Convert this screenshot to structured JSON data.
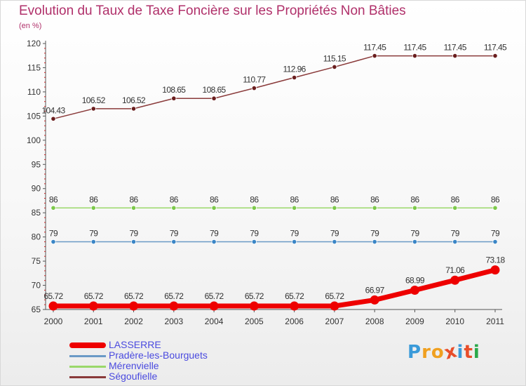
{
  "page": {
    "title": "Evolution du Taux de Taxe Foncière sur les Propriétés Non Bâties",
    "subtitle": "(en %)"
  },
  "brand": {
    "text": "Proxiti",
    "letters": [
      "P",
      "r",
      "o",
      "x",
      "i",
      "t",
      "i"
    ],
    "letter_colors": [
      "#3a9ad9",
      "#f0a020",
      "#f0a020",
      "#e84e2a",
      "#3a9ad9",
      "#e84e2a",
      "#2aa84a"
    ]
  },
  "chart_data": {
    "type": "line",
    "categories": [
      "2000",
      "2001",
      "2002",
      "2003",
      "2004",
      "2005",
      "2006",
      "2007",
      "2008",
      "2009",
      "2010",
      "2011"
    ],
    "ylim": [
      65,
      120
    ],
    "yticks": [
      65,
      70,
      75,
      80,
      85,
      90,
      95,
      100,
      105,
      110,
      115,
      120
    ],
    "grid": false,
    "legend_position": "bottom-left",
    "series": [
      {
        "name": "LASSERRE",
        "color": "#ee0000",
        "emphasis": true,
        "values": [
          65.72,
          65.72,
          65.72,
          65.72,
          65.72,
          65.72,
          65.72,
          65.72,
          66.97,
          68.99,
          71.06,
          73.18
        ],
        "labels": [
          "65.72",
          "65.72",
          "65.72",
          "65.72",
          "65.72",
          "65.72",
          "65.72",
          "65.72",
          "66.97",
          "68.99",
          "71.06",
          "73.18"
        ]
      },
      {
        "name": "Pradère-les-Bourguets",
        "color": "#6a9ac6",
        "marker_color": "#3a86c6",
        "emphasis": false,
        "values": [
          79,
          79,
          79,
          79,
          79,
          79,
          79,
          79,
          79,
          79,
          79,
          79
        ],
        "labels": [
          "79",
          "79",
          "79",
          "79",
          "79",
          "79",
          "79",
          "79",
          "79",
          "79",
          "79",
          "79"
        ]
      },
      {
        "name": "Mérenvielle",
        "color": "#9ad86a",
        "marker_color": "#7cc84a",
        "emphasis": false,
        "values": [
          86,
          86,
          86,
          86,
          86,
          86,
          86,
          86,
          86,
          86,
          86,
          86
        ],
        "labels": [
          "86",
          "86",
          "86",
          "86",
          "86",
          "86",
          "86",
          "86",
          "86",
          "86",
          "86",
          "86"
        ]
      },
      {
        "name": "Ségoufielle",
        "color": "#8a3a3a",
        "marker_color": "#6a1e1e",
        "emphasis": false,
        "values": [
          104.43,
          106.52,
          106.52,
          108.65,
          108.65,
          110.77,
          112.96,
          115.15,
          117.45,
          117.45,
          117.45,
          117.45
        ],
        "labels": [
          "104.43",
          "106.52",
          "106.52",
          "108.65",
          "108.65",
          "110.77",
          "112.96",
          "115.15",
          "117.45",
          "117.45",
          "117.45",
          "117.45"
        ]
      }
    ]
  }
}
